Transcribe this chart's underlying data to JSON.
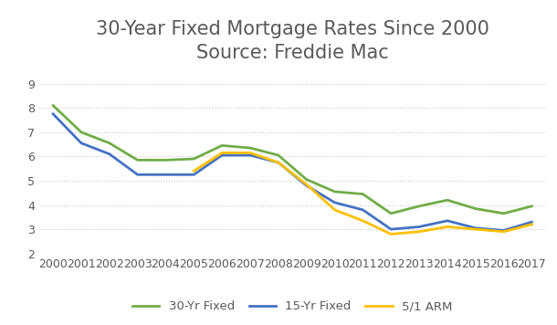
{
  "title_line1": "30-Year Fixed Mortgage Rates Since 2000",
  "title_line2": "Source: Freddie Mac",
  "years": [
    2000,
    2001,
    2002,
    2003,
    2004,
    2005,
    2006,
    2007,
    2008,
    2009,
    2010,
    2011,
    2012,
    2013,
    2014,
    2015,
    2016,
    2017
  ],
  "rate_30yr": [
    8.1,
    7.0,
    6.55,
    5.85,
    5.85,
    5.9,
    6.45,
    6.35,
    6.05,
    5.05,
    4.55,
    4.45,
    3.65,
    3.95,
    4.2,
    3.85,
    3.65,
    3.95
  ],
  "rate_15yr": [
    7.75,
    6.55,
    6.1,
    5.25,
    5.25,
    5.25,
    6.05,
    6.05,
    5.75,
    4.8,
    4.1,
    3.8,
    3.0,
    3.1,
    3.35,
    3.05,
    2.95,
    3.3
  ],
  "rate_arm": [
    null,
    null,
    null,
    null,
    null,
    5.4,
    6.15,
    6.15,
    5.75,
    4.85,
    3.8,
    3.35,
    2.8,
    2.9,
    3.1,
    3.0,
    2.9,
    3.2
  ],
  "color_30yr": "#70ad47",
  "color_15yr": "#4472c4",
  "color_arm": "#ffc000",
  "ylim": [
    2,
    9.5
  ],
  "yticks": [
    2,
    3,
    4,
    5,
    6,
    7,
    8,
    9
  ],
  "background_color": "#ffffff",
  "title_fontsize": 15,
  "tick_fontsize": 9,
  "legend_labels": [
    "30-Yr Fixed",
    "15-Yr Fixed",
    "5/1 ARM"
  ],
  "title_color": "#595959",
  "tick_color": "#595959"
}
